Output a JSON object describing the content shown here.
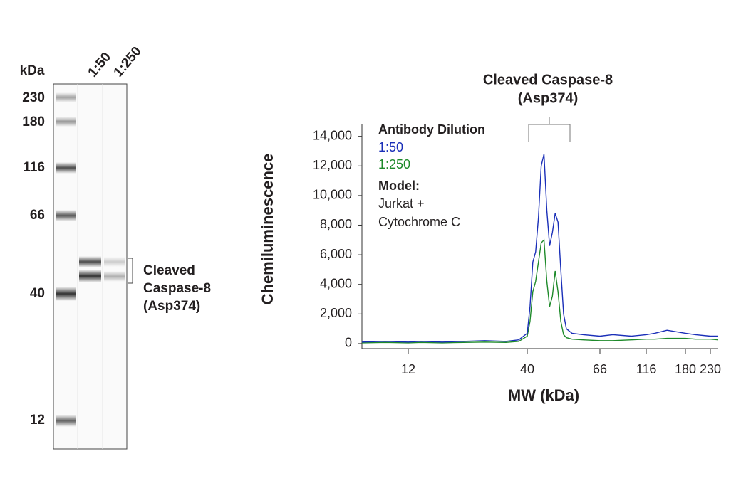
{
  "blot": {
    "unit_label": "kDa",
    "lanes": [
      "1:50",
      "1:250"
    ],
    "markers": [
      230,
      180,
      116,
      66,
      40,
      12
    ],
    "annotation": [
      "Cleaved",
      "Caspase-8",
      "(Asp374)"
    ]
  },
  "chart_data": {
    "type": "line",
    "title": [
      "Cleaved Caspase-8",
      "(Asp374)"
    ],
    "xlabel": "MW (kDa)",
    "ylabel": "Chemiluminescence",
    "legend_title": "Antibody Dilution",
    "model_title": "Model:",
    "model_text": [
      "Jurkat +",
      "Cytochrome C"
    ],
    "x": [
      8,
      10,
      12,
      15,
      20,
      25,
      30,
      35,
      38,
      40,
      41,
      42,
      43,
      44,
      45,
      46,
      47,
      48,
      49,
      50,
      51,
      52,
      53,
      54,
      56,
      60,
      66,
      80,
      100,
      116,
      130,
      150,
      180,
      200,
      230,
      250
    ],
    "series": [
      {
        "name": "1:50",
        "color": "#1a2fb8",
        "values": [
          100,
          150,
          100,
          150,
          100,
          150,
          200,
          150,
          250,
          700,
          2500,
          5500,
          6200,
          8500,
          12000,
          12800,
          9000,
          6600,
          7500,
          8800,
          8200,
          5000,
          2000,
          1000,
          700,
          600,
          500,
          600,
          500,
          600,
          700,
          900,
          700,
          600,
          500,
          500
        ]
      },
      {
        "name": "1:250",
        "color": "#1e8a2a",
        "values": [
          50,
          80,
          50,
          80,
          50,
          80,
          100,
          80,
          150,
          500,
          1500,
          3500,
          4200,
          5500,
          6800,
          7000,
          4200,
          2500,
          3200,
          4900,
          3500,
          1500,
          600,
          400,
          300,
          250,
          200,
          200,
          250,
          300,
          300,
          350,
          350,
          300,
          300,
          250
        ]
      }
    ],
    "xlim": [
      8,
      250
    ],
    "xticks": [
      12,
      40,
      66,
      116,
      180,
      230
    ],
    "ylim": [
      -340,
      14800
    ],
    "yticks": [
      0,
      {
        "value": 2000,
        "label": "2,000"
      },
      {
        "value": 4000,
        "label": "4,000"
      },
      {
        "value": 6000,
        "label": "6,000"
      },
      {
        "value": 8000,
        "label": "8,000"
      },
      {
        "value": 10000,
        "label": "10,000"
      },
      {
        "value": 12000,
        "label": "12,000"
      },
      {
        "value": 14000,
        "label": "14,000"
      }
    ]
  }
}
